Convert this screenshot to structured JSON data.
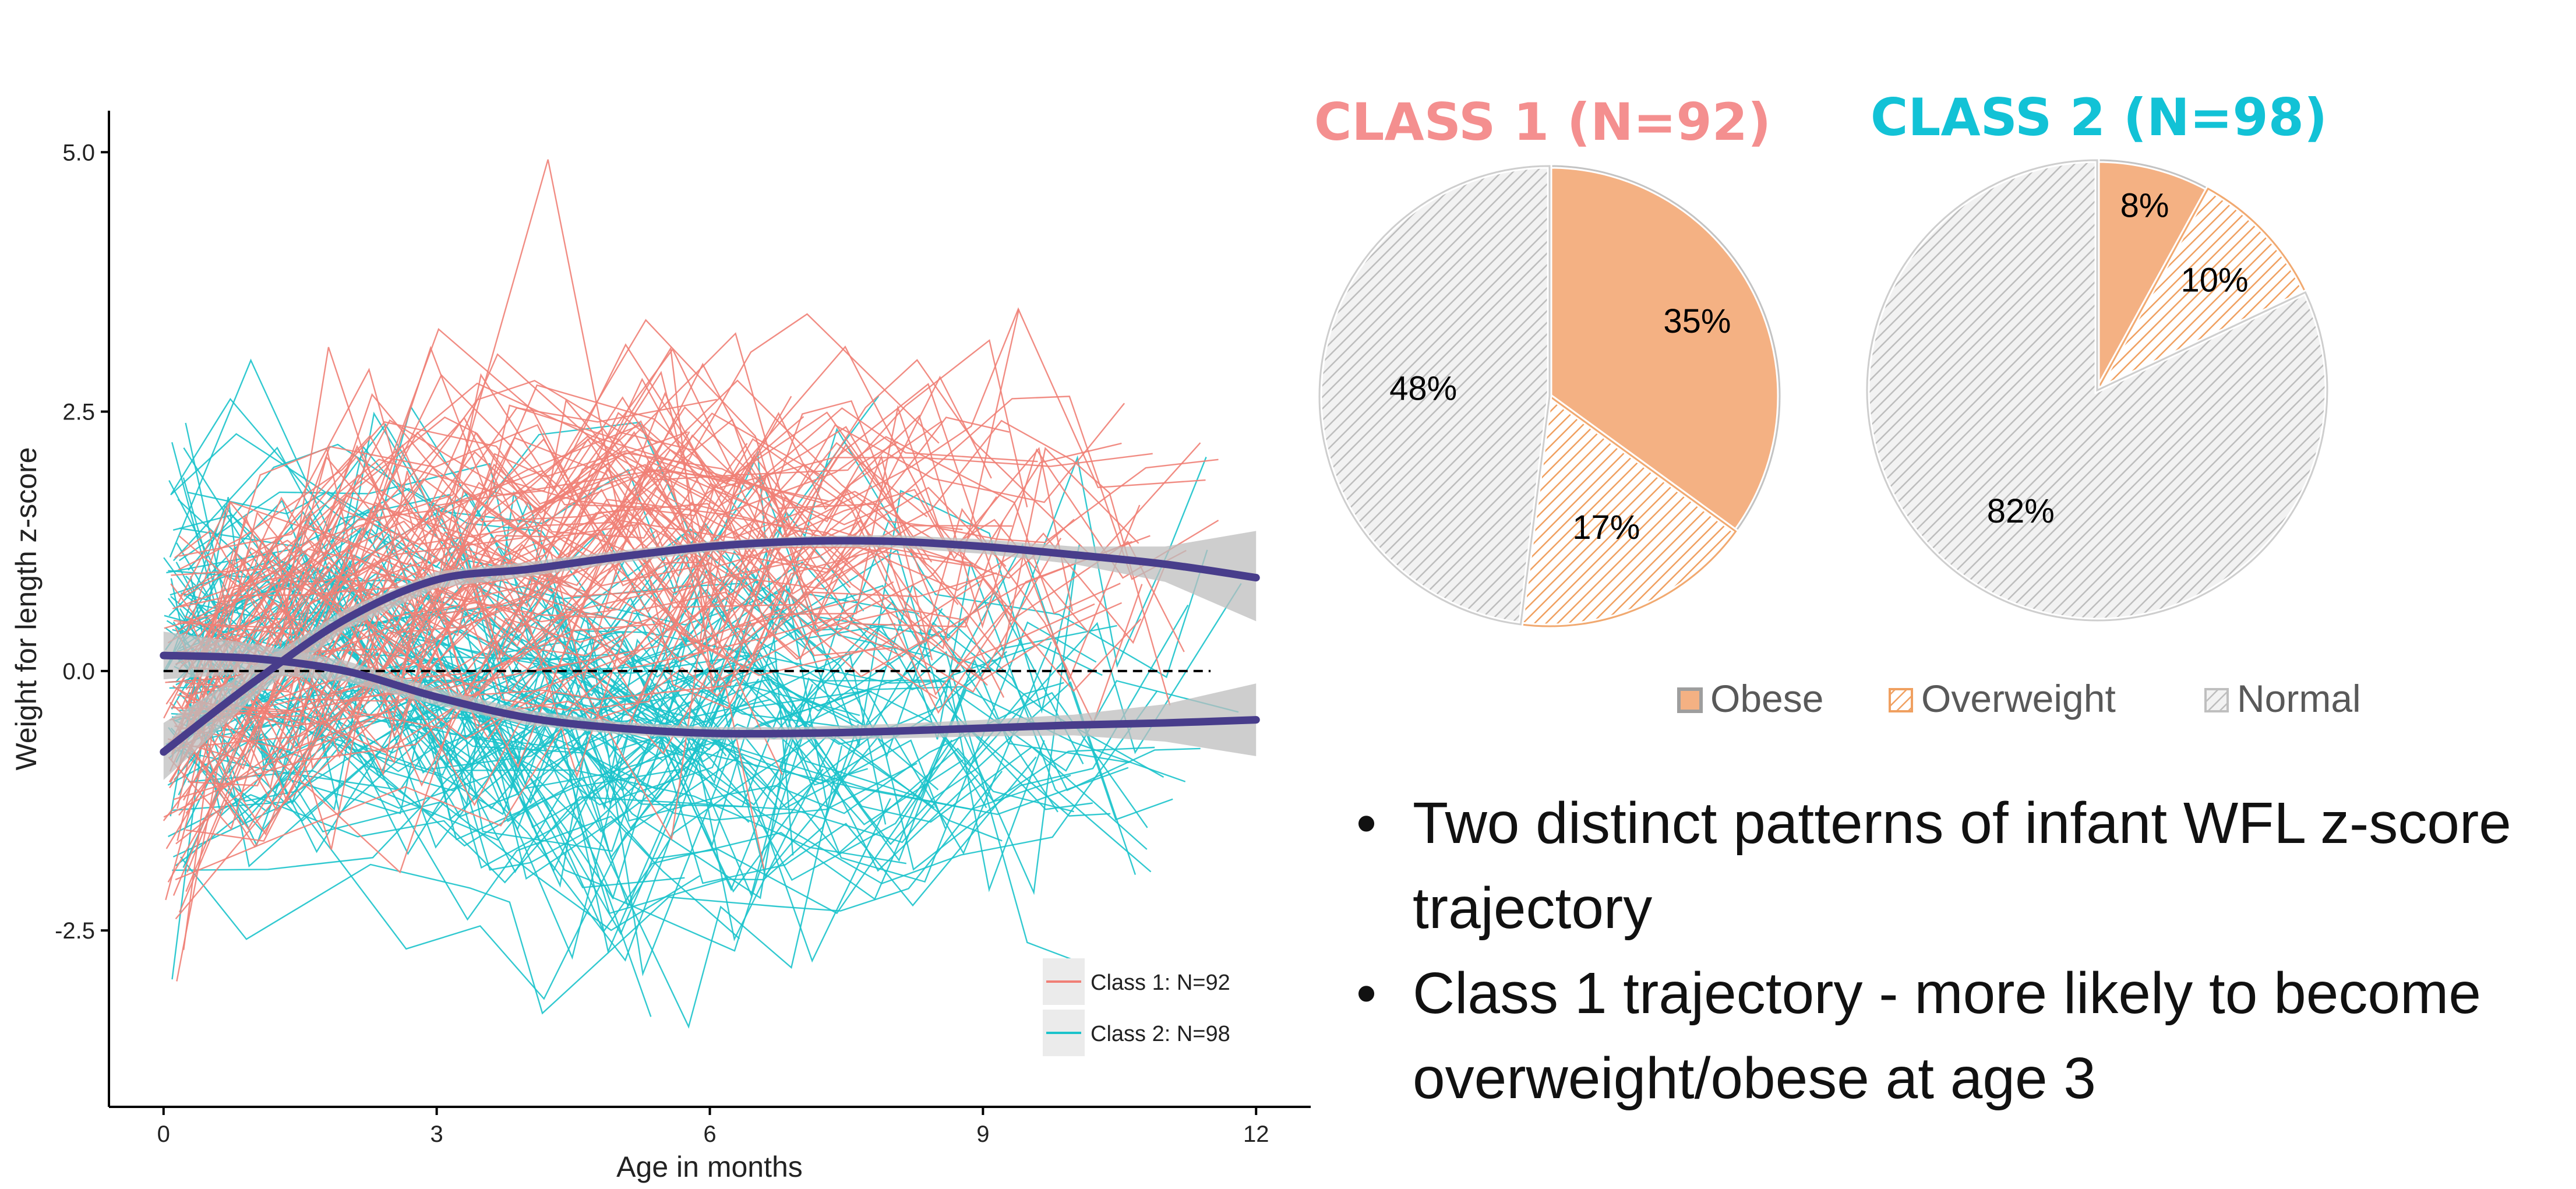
{
  "chart_data": [
    {
      "type": "line",
      "title": "",
      "xlabel": "Age in months",
      "ylabel": "Weight for length z-score",
      "xlim": [
        -0.6,
        12.6
      ],
      "ylim": [
        -4.2,
        5.4
      ],
      "x_ticks": [
        0,
        3,
        6,
        9,
        12
      ],
      "x_tick_labels": [
        "0",
        "3",
        "6",
        "9",
        "12"
      ],
      "y_ticks": [
        -2.5,
        0,
        2.5,
        5
      ],
      "y_tick_labels": [
        "-2.5",
        "0.0",
        "2.5",
        "5.0"
      ],
      "grid": false,
      "reference_line": {
        "y": 0,
        "x_from": 0,
        "x_to": 11.5,
        "style": "dashed"
      },
      "legend_position": "bottom-right",
      "series": [
        {
          "name": "Class 1: N=92",
          "color": "#f07f76",
          "smooth": {
            "x": [
              0,
              1,
              2,
              3,
              4,
              5,
              6,
              7,
              8,
              9,
              10,
              11,
              12
            ],
            "y": [
              -0.78,
              -0.1,
              0.5,
              0.88,
              0.98,
              1.1,
              1.2,
              1.25,
              1.25,
              1.2,
              1.12,
              1.03,
              0.9
            ]
          },
          "ci_upper": [
            -0.5,
            0.05,
            0.6,
            0.96,
            1.05,
            1.16,
            1.25,
            1.3,
            1.31,
            1.27,
            1.2,
            1.2,
            1.35
          ],
          "ci_lower": [
            -1.05,
            -0.25,
            0.4,
            0.8,
            0.91,
            1.04,
            1.15,
            1.2,
            1.19,
            1.13,
            1.03,
            0.86,
            0.48
          ]
        },
        {
          "name": "Class 2: N=98",
          "color": "#1bc3cb",
          "smooth": {
            "x": [
              0,
              1,
              2,
              3,
              4,
              5,
              6,
              7,
              8,
              9,
              10,
              11,
              12
            ],
            "y": [
              0.15,
              0.12,
              0.0,
              -0.25,
              -0.45,
              -0.55,
              -0.6,
              -0.6,
              -0.58,
              -0.55,
              -0.52,
              -0.5,
              -0.47
            ]
          },
          "ci_upper": [
            0.38,
            0.26,
            0.1,
            -0.17,
            -0.38,
            -0.49,
            -0.54,
            -0.54,
            -0.51,
            -0.47,
            -0.42,
            -0.32,
            -0.12
          ],
          "ci_lower": [
            -0.08,
            -0.02,
            -0.1,
            -0.33,
            -0.52,
            -0.61,
            -0.66,
            -0.66,
            -0.65,
            -0.63,
            -0.62,
            -0.68,
            -0.82
          ]
        }
      ],
      "smooth_color": "#483d8b"
    },
    {
      "type": "pie",
      "title": "CLASS 1 (N=92)",
      "title_color": "#f48f8f",
      "slices": [
        {
          "label": "35%",
          "value": 35,
          "category": "Obese"
        },
        {
          "label": "17%",
          "value": 17,
          "category": "Overweight"
        },
        {
          "label": "48%",
          "value": 48,
          "category": "Normal"
        }
      ]
    },
    {
      "type": "pie",
      "title": "CLASS 2 (N=98)",
      "title_color": "#12c2d6",
      "slices": [
        {
          "label": "8%",
          "value": 8,
          "category": "Obese"
        },
        {
          "label": "10%",
          "value": 10,
          "category": "Overweight"
        },
        {
          "label": "82%",
          "value": 82,
          "category": "Normal"
        }
      ]
    }
  ],
  "pie_legend": {
    "items": [
      {
        "label": "Obese",
        "fill": "#f4b183",
        "stroke": "#a6a6a6",
        "pattern": "solid"
      },
      {
        "label": "Overweight",
        "fill": "#ffffff",
        "stroke": "#f0a060",
        "pattern": "hatch-orange"
      },
      {
        "label": "Normal",
        "fill": "#f2f2f2",
        "stroke": "#bfbfbf",
        "pattern": "hatch-gray"
      }
    ]
  },
  "bullets": [
    "Two distinct patterns of infant WFL z-score trajectory",
    "Class 1 trajectory - more likely to become overweight/obese at age 3"
  ],
  "bullet_glyph": "•"
}
